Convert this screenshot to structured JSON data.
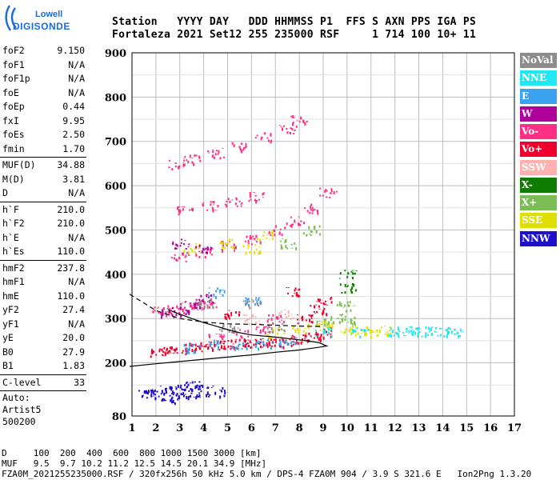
{
  "brand": {
    "line1": "Lowell",
    "line2": "DIGISONDE",
    "color": "#1a6bd8"
  },
  "header": {
    "line1": "Station   YYYY DAY   DDD HHMMSS P1  FFS S AXN PPS IGA PS",
    "line2": "Fortaleza 2021 Set12 255 235000 RSF     1 714 100 10+ 11"
  },
  "params": [
    {
      "name": "foF2",
      "value": "9.150"
    },
    {
      "name": "foF1",
      "value": "N/A"
    },
    {
      "name": "foF1p",
      "value": "N/A"
    },
    {
      "name": "foE",
      "value": "N/A"
    },
    {
      "name": "foEp",
      "value": "0.44"
    },
    {
      "name": "fxI",
      "value": "9.95"
    },
    {
      "name": "foEs",
      "value": "2.50"
    },
    {
      "name": "fmin",
      "value": "1.70"
    },
    {
      "sep": true
    },
    {
      "name": "MUF(D)",
      "value": "34.88"
    },
    {
      "name": "M(D)",
      "value": "3.81"
    },
    {
      "name": "D",
      "value": "N/A"
    },
    {
      "sep": true
    },
    {
      "name": "h`F",
      "value": "210.0"
    },
    {
      "name": "h`F2",
      "value": "210.0"
    },
    {
      "name": "h`E",
      "value": "N/A"
    },
    {
      "name": "h`Es",
      "value": "110.0"
    },
    {
      "sep": true
    },
    {
      "name": "hmF2",
      "value": "237.8"
    },
    {
      "name": "hmF1",
      "value": "N/A"
    },
    {
      "name": "hmE",
      "value": "110.0"
    },
    {
      "name": "yF2",
      "value": "27.4"
    },
    {
      "name": "yF1",
      "value": "N/A"
    },
    {
      "name": "yE",
      "value": "20.0"
    },
    {
      "name": "B0",
      "value": "27.9"
    },
    {
      "name": "B1",
      "value": "1.83"
    },
    {
      "sep": true
    },
    {
      "name": "C-level",
      "value": "33"
    },
    {
      "sep": true
    }
  ],
  "auto": [
    "Auto:",
    "Artist5",
    "500200"
  ],
  "legend": [
    {
      "label": "NoVal",
      "color": "#8c8c8c"
    },
    {
      "label": "NNE",
      "color": "#21e6f4"
    },
    {
      "label": "E",
      "color": "#3ba2f0"
    },
    {
      "label": "W",
      "color": "#b0009c"
    },
    {
      "label": "Vo-",
      "color": "#ff2f86"
    },
    {
      "label": "Vo+",
      "color": "#f0002c"
    },
    {
      "label": "SSW",
      "color": "#ffb0b0"
    },
    {
      "label": "X-",
      "color": "#0e7c00"
    },
    {
      "label": "X+",
      "color": "#7bbd52"
    },
    {
      "label": "SSE",
      "color": "#e0e000"
    },
    {
      "label": "NNW",
      "color": "#1e10c8"
    }
  ],
  "footer": {
    "line1": "D     100  200  400  600  800 1000 1500 3000 [km]",
    "line2": "MUF   9.5  9.7 10.2 11.2 12.5 14.5 20.1 34.9 [MHz]",
    "line3": "FZA0M_2021255235000.RSF / 320fx256h 50 kHz 5.0 km / DPS-4 FZA0M 904 / 3.9 S 321.6 E   Ion2Png 1.3.20"
  },
  "chart_data": {
    "type": "scatter",
    "title": "",
    "xlabel": "",
    "ylabel": "",
    "xlim": [
      1,
      17
    ],
    "ylim": [
      80,
      900
    ],
    "x_ticks": [
      1,
      2,
      3,
      4,
      5,
      6,
      7,
      8,
      9,
      10,
      11,
      12,
      13,
      14,
      15,
      16,
      17
    ],
    "y_ticks": [
      200,
      300,
      400,
      500,
      600,
      700,
      800,
      900
    ],
    "y_extra_label": 80,
    "grid": true,
    "series": [
      {
        "name": "Vo+",
        "color": "#f0002c",
        "points": [
          [
            2.0,
            225
          ],
          [
            2.5,
            228
          ],
          [
            3.0,
            232
          ],
          [
            3.5,
            235
          ],
          [
            4.0,
            238
          ],
          [
            4.5,
            240
          ],
          [
            5.0,
            242
          ],
          [
            5.5,
            244
          ],
          [
            6.0,
            245
          ],
          [
            6.5,
            246
          ],
          [
            7.0,
            248
          ],
          [
            7.5,
            250
          ],
          [
            8.0,
            255
          ],
          [
            8.5,
            260
          ],
          [
            9.0,
            270
          ],
          [
            8.2,
            300
          ],
          [
            8.8,
            320
          ],
          [
            9.0,
            340
          ],
          [
            7.8,
            360
          ],
          [
            5.2,
            310
          ]
        ]
      },
      {
        "name": "Vo-",
        "color": "#ff2f86",
        "points": [
          [
            2.2,
            320
          ],
          [
            2.8,
            325
          ],
          [
            3.5,
            330
          ],
          [
            4.2,
            335
          ],
          [
            4.5,
            260
          ],
          [
            5.5,
            270
          ],
          [
            6.5,
            280
          ],
          [
            7.0,
            300
          ],
          [
            3.0,
            440
          ],
          [
            4.0,
            450
          ],
          [
            5.0,
            465
          ],
          [
            6.0,
            480
          ],
          [
            7.0,
            500
          ],
          [
            7.8,
            520
          ],
          [
            8.5,
            550
          ],
          [
            9.2,
            585
          ],
          [
            3.2,
            545
          ],
          [
            4.2,
            555
          ],
          [
            5.2,
            565
          ],
          [
            6.2,
            575
          ],
          [
            2.8,
            650
          ],
          [
            3.5,
            660
          ],
          [
            4.5,
            675
          ],
          [
            5.5,
            690
          ],
          [
            6.5,
            710
          ],
          [
            7.5,
            730
          ],
          [
            8.0,
            750
          ]
        ]
      },
      {
        "name": "X+",
        "color": "#7bbd52",
        "points": [
          [
            9.0,
            290
          ],
          [
            9.5,
            300
          ],
          [
            9.9,
            330
          ],
          [
            10.1,
            300
          ],
          [
            7.5,
            470
          ],
          [
            8.5,
            500
          ]
        ]
      },
      {
        "name": "X-",
        "color": "#0e7c00",
        "points": [
          [
            10.0,
            400
          ],
          [
            10.0,
            370
          ]
        ]
      },
      {
        "name": "SSE",
        "color": "#e0e000",
        "points": [
          [
            7.0,
            270
          ],
          [
            8.0,
            280
          ],
          [
            9.0,
            285
          ],
          [
            10.0,
            280
          ],
          [
            10.5,
            275
          ],
          [
            11.0,
            272
          ],
          [
            11.5,
            275
          ],
          [
            3.5,
            460
          ],
          [
            5.0,
            470
          ],
          [
            6.0,
            460
          ],
          [
            6.5,
            490
          ]
        ]
      },
      {
        "name": "NNE",
        "color": "#21e6f4",
        "points": [
          [
            12.0,
            272
          ],
          [
            12.5,
            272
          ],
          [
            13.0,
            272
          ],
          [
            13.5,
            272
          ],
          [
            14.0,
            272
          ],
          [
            14.5,
            272
          ],
          [
            9.0,
            270
          ],
          [
            10.5,
            270
          ]
        ]
      },
      {
        "name": "E",
        "color": "#3ba2f0",
        "points": [
          [
            3.5,
            235
          ],
          [
            4.5,
            240
          ],
          [
            5.5,
            242
          ],
          [
            6.5,
            244
          ],
          [
            7.5,
            248
          ],
          [
            4.5,
            360
          ],
          [
            6.0,
            340
          ]
        ]
      },
      {
        "name": "W",
        "color": "#b0009c",
        "points": [
          [
            2.5,
            315
          ],
          [
            3.0,
            320
          ],
          [
            3.5,
            330
          ],
          [
            4.0,
            345
          ],
          [
            3.0,
            470
          ],
          [
            4.0,
            460
          ]
        ]
      },
      {
        "name": "NNW",
        "color": "#1e10c8",
        "points": [
          [
            1.6,
            130
          ],
          [
            2.0,
            130
          ],
          [
            2.5,
            140
          ],
          [
            3.0,
            145
          ],
          [
            3.5,
            150
          ],
          [
            4.0,
            140
          ],
          [
            4.5,
            135
          ],
          [
            2.5,
            120
          ],
          [
            3.0,
            125
          ],
          [
            3.5,
            132
          ]
        ]
      },
      {
        "name": "NoVal",
        "color": "#8c8c8c",
        "points": [
          [
            4.0,
            330
          ],
          [
            6.0,
            335
          ],
          [
            5.0,
            280
          ],
          [
            7.0,
            280
          ]
        ]
      },
      {
        "name": "SSW",
        "color": "#ffb0b0",
        "points": [
          [
            6.0,
            300
          ],
          [
            7.5,
            310
          ]
        ]
      }
    ],
    "profile_curves": [
      {
        "style": "solid",
        "points": [
          [
            0.9,
            192
          ],
          [
            2,
            198
          ],
          [
            3,
            203
          ],
          [
            4,
            208
          ],
          [
            5,
            213
          ],
          [
            6,
            218
          ],
          [
            7,
            224
          ],
          [
            8,
            229
          ],
          [
            8.8,
            235
          ],
          [
            9.15,
            238
          ],
          [
            8.8,
            246
          ],
          [
            8,
            252
          ],
          [
            7,
            258
          ],
          [
            6,
            263
          ],
          [
            5.5,
            268
          ],
          [
            5,
            275
          ],
          [
            4.5,
            283
          ],
          [
            4,
            291
          ],
          [
            3.5,
            300
          ],
          [
            3,
            310
          ],
          [
            2.5,
            320
          ]
        ]
      },
      {
        "style": "dashed",
        "points": [
          [
            0.9,
            355
          ],
          [
            1.5,
            335
          ],
          [
            2,
            318
          ],
          [
            3,
            300
          ],
          [
            4,
            292
          ],
          [
            5,
            288
          ],
          [
            6,
            287
          ],
          [
            7,
            285
          ],
          [
            8,
            283
          ],
          [
            9,
            282
          ]
        ]
      }
    ]
  }
}
